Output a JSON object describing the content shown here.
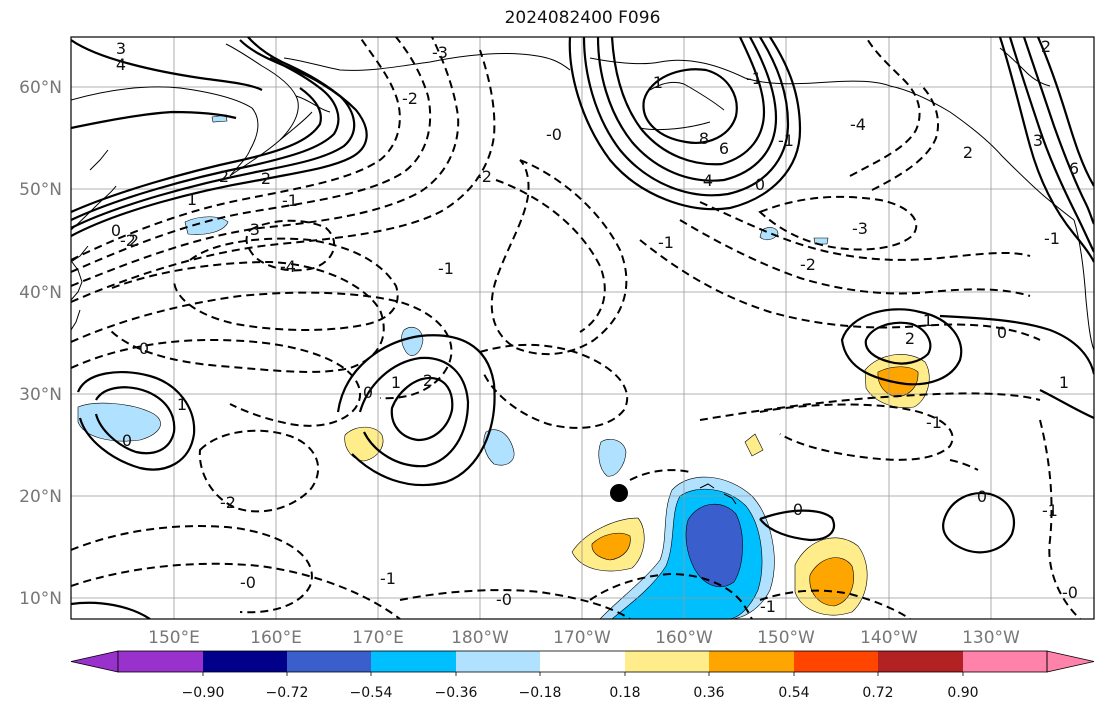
{
  "title": "2024082400 F096",
  "lat_labels": [
    "60°N",
    "50°N",
    "40°N",
    "30°N",
    "20°N",
    "10°N"
  ],
  "lon_labels": [
    "150°E",
    "160°E",
    "170°E",
    "180°W",
    "170°W",
    "160°W",
    "150°W",
    "140°W",
    "130°W"
  ],
  "colorbar": {
    "colors": [
      "#9932cc",
      "#00008b",
      "#3a5fcd",
      "#00bfff",
      "#b0e2ff",
      "#ffffff",
      "#ffec8b",
      "#ffa500",
      "#ff4500",
      "#b22222",
      "#ff82ab"
    ],
    "ticks": [
      "−0.90",
      "−0.72",
      "−0.54",
      "−0.36",
      "−0.18",
      "0.18",
      "0.36",
      "0.54",
      "0.72",
      "0.90"
    ]
  },
  "contour_labels": [
    "3",
    "4",
    "2",
    "2",
    "1",
    "0",
    "-2",
    "-3",
    "-4",
    "-1",
    "-2",
    "-3",
    "-1",
    "0",
    "0",
    "1",
    "2",
    "-2",
    "-2",
    "-1",
    "-0",
    "-1",
    "-0",
    "-1",
    "4",
    "6",
    "8",
    "0",
    "-1",
    "-4",
    "-3",
    "-2",
    "-1",
    "1",
    "2",
    "0",
    "1",
    "-1",
    "0",
    "-1",
    "3",
    "6",
    "-0",
    "1",
    "0",
    "1",
    "2",
    "-0",
    "-1",
    "2",
    "0",
    "2"
  ]
}
